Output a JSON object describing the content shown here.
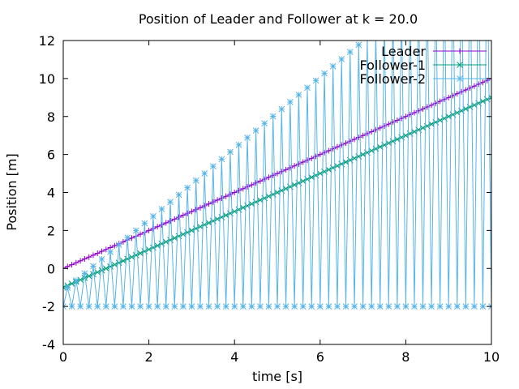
{
  "chart_data": {
    "type": "line",
    "title": "Position of Leader and Follower at k = 20.0",
    "xlabel": "time [s]",
    "ylabel": "Position [m]",
    "xlim": [
      0,
      10
    ],
    "ylim": [
      -4,
      12
    ],
    "xticks": [
      "0",
      "2",
      "4",
      "6",
      "8",
      "10"
    ],
    "yticks": [
      "-4",
      "-2",
      "0",
      "2",
      "4",
      "6",
      "8",
      "10",
      "12"
    ],
    "grid": false,
    "legend_position": "top-right",
    "sample_dt": 0.1,
    "series": [
      {
        "name": "Leader",
        "color": "#9400d3",
        "marker": "plus",
        "model": "linear",
        "start": 0,
        "slope": 1
      },
      {
        "name": "Follower-1",
        "color": "#009e73",
        "marker": "cross",
        "model": "linear",
        "start": -1,
        "slope": 1
      },
      {
        "name": "Follower-2",
        "color": "#56b4e9",
        "marker": "star",
        "model": "oscillating",
        "floor": -2,
        "peak_start": -1.2,
        "peak_slope": 1.88
      }
    ]
  }
}
